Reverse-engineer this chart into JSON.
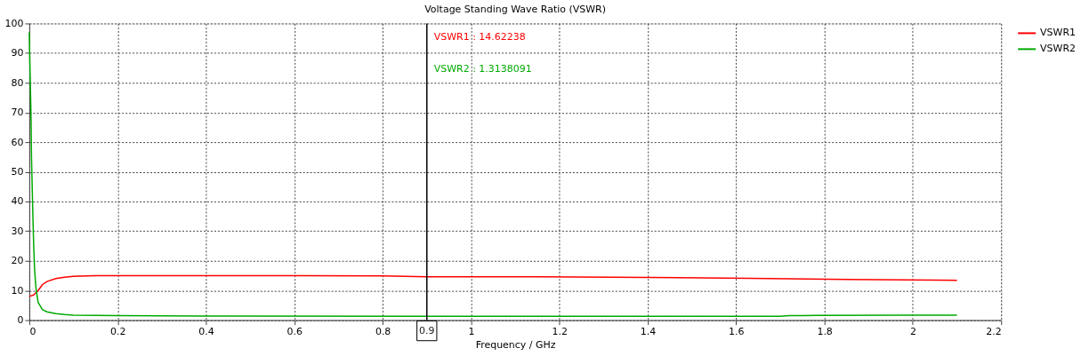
{
  "chart_data": {
    "type": "line",
    "title": "Voltage Standing Wave Ratio (VSWR)",
    "xlabel": "Frequency / GHz",
    "xlim": [
      0,
      2.2
    ],
    "xticks": [
      0,
      0.2,
      0.4,
      0.6,
      0.8,
      1,
      1.2,
      1.4,
      1.6,
      1.8,
      2,
      2.2
    ],
    "ylim": [
      0,
      100
    ],
    "yticks": [
      0,
      10,
      20,
      30,
      40,
      50,
      60,
      70,
      80,
      90,
      100
    ],
    "grid": true,
    "legend": "top right",
    "marker": "none",
    "line_style": "solid",
    "series": [
      {
        "name": "VSWR1",
        "color": "#ff0000",
        "x": [
          0,
          0.01,
          0.02,
          0.03,
          0.04,
          0.06,
          0.08,
          0.1,
          0.15,
          0.6,
          0.8,
          0.9,
          1.15,
          1.4,
          1.63,
          1.85,
          2.05,
          2.1
        ],
        "values": [
          8,
          8.5,
          10,
          12,
          13,
          14,
          14.5,
          14.8,
          15,
          15,
          14.9,
          14.6,
          14.6,
          14.4,
          14.1,
          13.7,
          13.5,
          13.4
        ]
      },
      {
        "name": "VSWR2",
        "color": "#00aa00",
        "x": [
          0,
          0.002,
          0.004,
          0.005,
          0.008,
          0.01,
          0.012,
          0.015,
          0.02,
          0.03,
          0.04,
          0.06,
          0.08,
          0.1,
          0.2,
          0.4,
          0.9,
          1.4,
          1.7,
          1.72,
          1.75,
          1.78,
          2.1
        ],
        "values": [
          97,
          82,
          68,
          55,
          36,
          25,
          17,
          11,
          6,
          3.5,
          2.8,
          2.2,
          1.9,
          1.7,
          1.5,
          1.4,
          1.3,
          1.3,
          1.3,
          1.5,
          1.5,
          1.6,
          1.7
        ]
      }
    ],
    "ref_lines": [
      {
        "axis": "x",
        "value": 0.9,
        "label": "0.9",
        "color": "#000000"
      }
    ],
    "annotations": [
      "VSWR1 : 14.62238",
      "VSWR2 : 1.3138091"
    ]
  }
}
